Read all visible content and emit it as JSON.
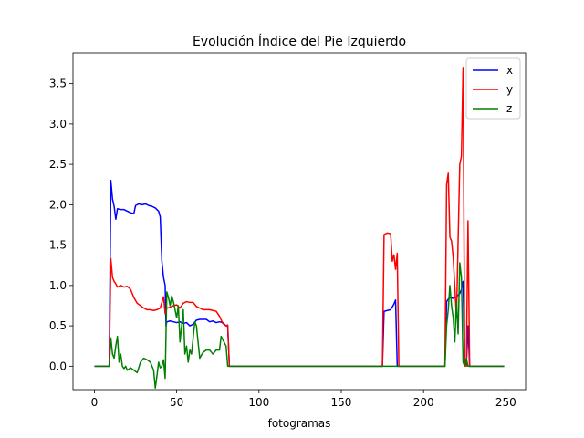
{
  "chart_data": {
    "type": "line",
    "title": "Evolución Índice del Pie Izquierdo",
    "xlabel": "fotogramas",
    "ylabel": "",
    "xlim": [
      -13,
      262
    ],
    "ylim": [
      -0.29,
      3.88
    ],
    "xticks": [
      0,
      50,
      100,
      150,
      200,
      250
    ],
    "yticks": [
      0.0,
      0.5,
      1.0,
      1.5,
      2.0,
      2.5,
      3.0,
      3.5
    ],
    "grid": false,
    "legend_position": "top-right",
    "series": [
      {
        "name": "x",
        "color": "#0000ff",
        "points": [
          [
            0,
            0
          ],
          [
            9,
            0
          ],
          [
            10,
            2.3
          ],
          [
            11,
            2.07
          ],
          [
            12,
            1.98
          ],
          [
            13,
            1.82
          ],
          [
            14,
            1.95
          ],
          [
            16,
            1.94
          ],
          [
            18,
            1.94
          ],
          [
            20,
            1.92
          ],
          [
            22,
            1.9
          ],
          [
            24,
            1.89
          ],
          [
            25,
            1.99
          ],
          [
            27,
            2.01
          ],
          [
            29,
            2.0
          ],
          [
            31,
            2.01
          ],
          [
            33,
            1.99
          ],
          [
            35,
            1.98
          ],
          [
            37,
            1.96
          ],
          [
            39,
            1.92
          ],
          [
            40,
            1.85
          ],
          [
            41,
            1.3
          ],
          [
            42,
            1.1
          ],
          [
            43,
            1.0
          ],
          [
            43.5,
            0.5
          ],
          [
            44,
            0.55
          ],
          [
            46,
            0.56
          ],
          [
            48,
            0.55
          ],
          [
            50,
            0.54
          ],
          [
            52,
            0.55
          ],
          [
            54,
            0.53
          ],
          [
            56,
            0.54
          ],
          [
            58,
            0.5
          ],
          [
            60,
            0.52
          ],
          [
            62,
            0.57
          ],
          [
            64,
            0.58
          ],
          [
            66,
            0.58
          ],
          [
            68,
            0.58
          ],
          [
            70,
            0.55
          ],
          [
            72,
            0.56
          ],
          [
            74,
            0.54
          ],
          [
            76,
            0.55
          ],
          [
            78,
            0.54
          ],
          [
            80,
            0.5
          ],
          [
            81,
            0.5
          ],
          [
            82,
            0
          ],
          [
            175,
            0
          ],
          [
            176,
            0.68
          ],
          [
            178,
            0.69
          ],
          [
            180,
            0.7
          ],
          [
            182,
            0.77
          ],
          [
            183,
            0.82
          ],
          [
            184,
            0
          ],
          [
            213,
            0
          ],
          [
            214,
            0.8
          ],
          [
            215,
            0.83
          ],
          [
            216,
            0.85
          ],
          [
            218,
            0.84
          ],
          [
            220,
            0.86
          ],
          [
            222,
            0.9
          ],
          [
            223,
            0.95
          ],
          [
            224,
            1.05
          ],
          [
            225,
            0.1
          ],
          [
            226,
            0
          ],
          [
            227,
            0.5
          ],
          [
            228,
            0
          ],
          [
            249,
            0
          ]
        ]
      },
      {
        "name": "y",
        "color": "#ff0000",
        "points": [
          [
            0,
            0
          ],
          [
            9,
            0
          ],
          [
            10,
            1.33
          ],
          [
            11,
            1.1
          ],
          [
            12,
            1.05
          ],
          [
            13,
            1.02
          ],
          [
            14,
            0.98
          ],
          [
            16,
            1.0
          ],
          [
            18,
            0.98
          ],
          [
            20,
            0.99
          ],
          [
            22,
            0.95
          ],
          [
            24,
            0.85
          ],
          [
            26,
            0.78
          ],
          [
            28,
            0.75
          ],
          [
            30,
            0.72
          ],
          [
            32,
            0.7
          ],
          [
            34,
            0.7
          ],
          [
            36,
            0.69
          ],
          [
            38,
            0.7
          ],
          [
            40,
            0.72
          ],
          [
            42,
            0.86
          ],
          [
            43,
            0.65
          ],
          [
            44,
            0.72
          ],
          [
            46,
            0.73
          ],
          [
            48,
            0.75
          ],
          [
            50,
            0.76
          ],
          [
            52,
            0.72
          ],
          [
            54,
            0.78
          ],
          [
            56,
            0.8
          ],
          [
            58,
            0.79
          ],
          [
            60,
            0.79
          ],
          [
            62,
            0.74
          ],
          [
            64,
            0.72
          ],
          [
            66,
            0.7
          ],
          [
            68,
            0.7
          ],
          [
            70,
            0.7
          ],
          [
            72,
            0.69
          ],
          [
            74,
            0.68
          ],
          [
            76,
            0.62
          ],
          [
            78,
            0.53
          ],
          [
            80,
            0.5
          ],
          [
            81,
            0.51
          ],
          [
            82,
            0
          ],
          [
            175,
            0
          ],
          [
            176,
            1.63
          ],
          [
            178,
            1.65
          ],
          [
            180,
            1.64
          ],
          [
            181,
            1.3
          ],
          [
            182,
            1.38
          ],
          [
            183,
            1.2
          ],
          [
            184,
            1.4
          ],
          [
            185,
            0
          ],
          [
            213,
            0
          ],
          [
            214,
            2.25
          ],
          [
            215,
            2.39
          ],
          [
            216,
            1.6
          ],
          [
            217,
            1.55
          ],
          [
            218,
            1.35
          ],
          [
            220,
            0.6
          ],
          [
            222,
            2.5
          ],
          [
            223,
            2.6
          ],
          [
            224,
            3.7
          ],
          [
            225,
            0.05
          ],
          [
            226,
            0
          ],
          [
            227,
            1.8
          ],
          [
            228,
            0
          ],
          [
            249,
            0
          ]
        ]
      },
      {
        "name": "z",
        "color": "#008000",
        "points": [
          [
            0,
            0
          ],
          [
            9,
            0
          ],
          [
            10,
            0.35
          ],
          [
            11,
            0.15
          ],
          [
            12,
            0.1
          ],
          [
            13,
            0.25
          ],
          [
            14,
            0.37
          ],
          [
            15,
            0.05
          ],
          [
            16,
            0.15
          ],
          [
            17,
            0.0
          ],
          [
            18,
            -0.03
          ],
          [
            19,
            0.0
          ],
          [
            20,
            -0.05
          ],
          [
            22,
            -0.02
          ],
          [
            24,
            -0.05
          ],
          [
            26,
            -0.08
          ],
          [
            28,
            0.05
          ],
          [
            30,
            0.1
          ],
          [
            32,
            0.08
          ],
          [
            34,
            0.05
          ],
          [
            36,
            -0.05
          ],
          [
            37,
            -0.27
          ],
          [
            38,
            -0.12
          ],
          [
            39,
            0.05
          ],
          [
            40,
            -0.02
          ],
          [
            41,
            0.0
          ],
          [
            42,
            0.08
          ],
          [
            43,
            -0.15
          ],
          [
            44,
            0.92
          ],
          [
            45,
            0.85
          ],
          [
            46,
            0.75
          ],
          [
            47,
            0.87
          ],
          [
            48,
            0.8
          ],
          [
            50,
            0.6
          ],
          [
            51,
            0.75
          ],
          [
            52,
            0.3
          ],
          [
            53,
            0.5
          ],
          [
            54,
            0.7
          ],
          [
            55,
            0.15
          ],
          [
            56,
            0.25
          ],
          [
            57,
            0.05
          ],
          [
            58,
            0.2
          ],
          [
            59,
            0.15
          ],
          [
            60,
            0.35
          ],
          [
            61,
            0.55
          ],
          [
            62,
            0.5
          ],
          [
            64,
            0.1
          ],
          [
            66,
            0.17
          ],
          [
            68,
            0.2
          ],
          [
            70,
            0.2
          ],
          [
            72,
            0.15
          ],
          [
            74,
            0.2
          ],
          [
            76,
            0.2
          ],
          [
            77,
            0.37
          ],
          [
            78,
            0.33
          ],
          [
            80,
            0.25
          ],
          [
            81,
            0.0
          ],
          [
            82,
            0
          ],
          [
            175,
            0
          ],
          [
            213,
            0
          ],
          [
            214,
            0.5
          ],
          [
            215,
            0.7
          ],
          [
            216,
            1.0
          ],
          [
            217,
            0.75
          ],
          [
            218,
            0.6
          ],
          [
            219,
            0.3
          ],
          [
            220,
            0.8
          ],
          [
            221,
            0.4
          ],
          [
            222,
            1.28
          ],
          [
            223,
            1.1
          ],
          [
            224,
            0.05
          ],
          [
            225,
            0.0
          ],
          [
            226,
            0.1
          ],
          [
            227,
            0.0
          ],
          [
            228,
            0
          ],
          [
            249,
            0
          ]
        ]
      }
    ]
  }
}
